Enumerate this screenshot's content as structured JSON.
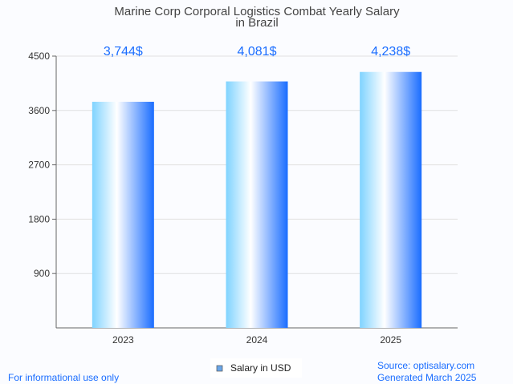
{
  "chart_data": {
    "type": "bar",
    "title": "Marine Corp Corporal Logistics Combat Yearly Salary",
    "title_line2": "in Brazil",
    "categories": [
      "2023",
      "2024",
      "2025"
    ],
    "values": [
      3744,
      4081,
      4238
    ],
    "data_labels": [
      "3,744$",
      "4,081$",
      "4,238$"
    ],
    "yticks": [
      900,
      1800,
      2700,
      3600,
      4500
    ],
    "ylim": [
      0,
      4500
    ],
    "xlabel": "",
    "ylabel": "",
    "grid": true,
    "legend": {
      "label": "Salary in USD",
      "placement": "bottom-center",
      "color": "#6aa6e8"
    },
    "colors": {
      "bar_light": "#7fd3ff",
      "bar_mid": "#ffffff",
      "bar_dark": "#1a6dff",
      "label": "#1a6dff"
    }
  },
  "footer": {
    "disclaimer": "For informational use only",
    "source": "Source: optisalary.com",
    "generated": "Generated March 2025"
  }
}
